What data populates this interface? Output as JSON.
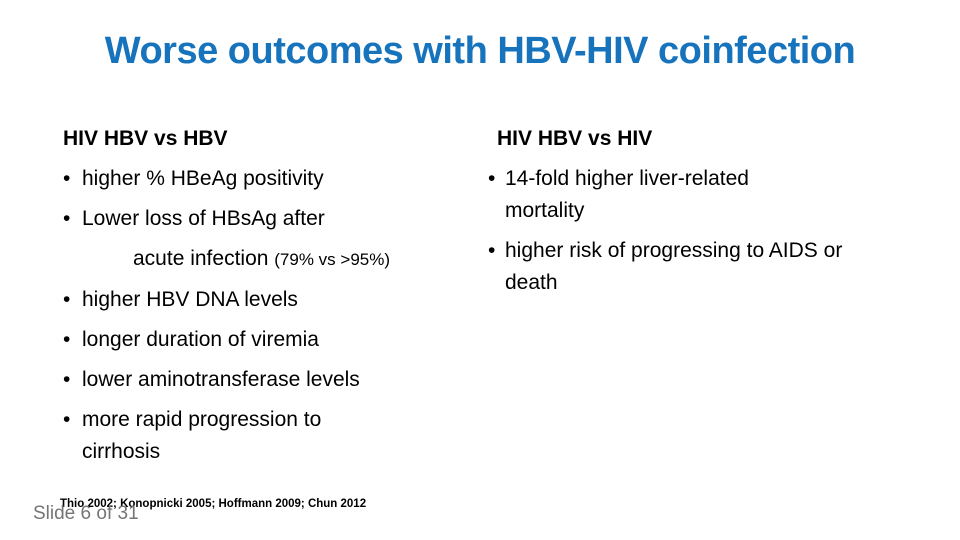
{
  "slide": {
    "title": "Worse outcomes with HBV-HIV coinfection",
    "bullet_glyph": "•",
    "colors": {
      "title_blue": "#1774BC",
      "body_text": "#000000",
      "slide_number_gray": "#757575",
      "background": "#FFFFFF"
    },
    "left_column": {
      "heading": "HIV HBV vs HBV",
      "bullets": [
        {
          "lines": [
            "higher % HBeAg positivity"
          ]
        },
        {
          "lines": [
            "Lower loss of HBsAg after"
          ],
          "continuation": {
            "text": "acute infection ",
            "note": "(79% vs >95%)"
          }
        },
        {
          "lines": [
            "higher HBV DNA levels"
          ]
        },
        {
          "lines": [
            "longer duration of viremia"
          ]
        },
        {
          "lines": [
            "lower aminotransferase levels"
          ]
        },
        {
          "lines": [
            "more rapid progression to",
            "cirrhosis"
          ]
        }
      ]
    },
    "right_column": {
      "heading": "HIV HBV vs HIV",
      "bullets": [
        {
          "lines": [
            "14-fold higher liver-related",
            "mortality"
          ]
        },
        {
          "lines": [
            "higher risk of progressing to AIDS or",
            "death"
          ]
        }
      ]
    },
    "footer": {
      "citation": "Thio 2002; Konopnicki 2005; Hoffmann 2009; Chun 2012",
      "slide_number": "Slide 6 of 31"
    }
  }
}
